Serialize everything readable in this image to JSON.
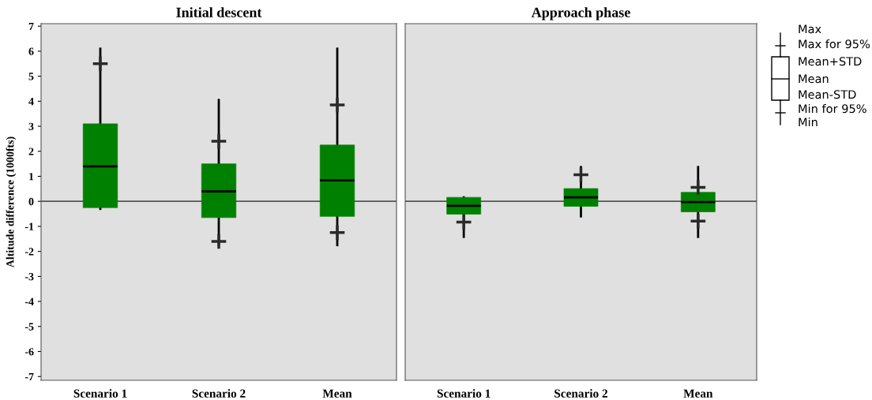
{
  "chart_data": [
    {
      "type": "box",
      "title": "Initial descent",
      "ylabel": "Altitude difference (1000fts)",
      "categories": [
        "Scenario 1",
        "Scenario 2",
        "Mean"
      ],
      "ylim": [
        -7.15,
        7.1
      ],
      "yticks": [
        -7,
        -6,
        -5,
        -4,
        -3,
        -2,
        -1,
        0,
        1,
        2,
        3,
        4,
        5,
        6,
        7
      ],
      "ref_lines": [
        {
          "axis": "y",
          "value": 0,
          "color": "#555555"
        }
      ],
      "series": [
        {
          "type": "box",
          "color": "#008000",
          "boxes": [
            {
              "low": -0.3,
              "q1": -0.25,
              "median": 1.4,
              "q3": 3.1,
              "high": 6.1
            },
            {
              "low": -1.75,
              "q1": -0.65,
              "median": 0.4,
              "q3": 1.5,
              "high": 4.05
            },
            {
              "low": -1.75,
              "q1": -0.6,
              "median": 0.84,
              "q3": 2.25,
              "high": 6.1
            }
          ]
        },
        {
          "type": "scatter",
          "marker": "cross",
          "color": "#2a2a2a",
          "x": [
            "Scenario 1",
            "Scenario 2",
            "Mean"
          ],
          "values": [
            5.5,
            2.4,
            3.85
          ]
        },
        {
          "type": "scatter",
          "marker": "cross",
          "color": "#2a2a2a",
          "x": [
            "Scenario 1",
            "Scenario 2",
            "Mean"
          ],
          "values": [
            null,
            -1.6,
            -1.25
          ]
        }
      ]
    },
    {
      "type": "box",
      "title": "Approach phase",
      "categories": [
        "Scenario 1",
        "Scenario 2",
        "Mean"
      ],
      "ylim": [
        -7.15,
        7.1
      ],
      "yticks": [
        -7,
        -6,
        -5,
        -4,
        -3,
        -2,
        -1,
        0,
        1,
        2,
        3,
        4,
        5,
        6,
        7
      ],
      "tick_labels": "x",
      "ref_lines": [
        {
          "axis": "y",
          "value": 0,
          "color": "#555555"
        }
      ],
      "annotations": [
        "Max",
        "Max for 95%",
        "Mean+STD",
        "Mean",
        "Mean-STD",
        "Min for 95%",
        "Min"
      ],
      "series": [
        {
          "type": "box",
          "color": "#008000",
          "boxes": [
            {
              "low": -1.42,
              "q1": -0.51,
              "median": -0.18,
              "q3": 0.16,
              "high": 0.16
            },
            {
              "low": -0.6,
              "q1": -0.2,
              "median": 0.16,
              "q3": 0.51,
              "high": 1.37
            },
            {
              "low": -1.42,
              "q1": -0.42,
              "median": -0.03,
              "q3": 0.36,
              "high": 1.37
            }
          ]
        },
        {
          "type": "scatter",
          "marker": "cross",
          "color": "#2a2a2a",
          "x": [
            "Scenario 1",
            "Scenario 2",
            "Mean"
          ],
          "values": [
            null,
            1.06,
            0.56
          ]
        },
        {
          "type": "scatter",
          "marker": "cross",
          "color": "#2a2a2a",
          "x": [
            "Scenario 1",
            "Scenario 2",
            "Mean"
          ],
          "values": [
            -0.83,
            null,
            -0.79
          ]
        }
      ]
    }
  ]
}
